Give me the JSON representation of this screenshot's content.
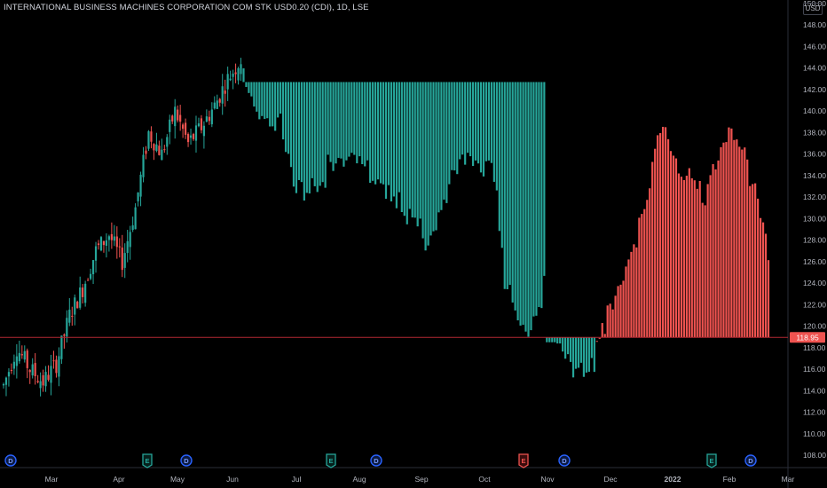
{
  "header": {
    "title": "INTERNATIONAL BUSINESS MACHINES CORPORATION COM STK USD0.20 (CDI), 1D, LSE",
    "currency": "USD"
  },
  "colors": {
    "up": "#26a69a",
    "down": "#ef5350",
    "axis_text": "#b2b5be",
    "axis_line": "#2a2e39",
    "background": "#000000",
    "last_price_line": "#b22833",
    "dividend_badge": "#2962ff",
    "earnings_good": "#26a69a",
    "earnings_bad": "#ef5350"
  },
  "chart_data": {
    "type": "candlestick",
    "y_axis": {
      "ticks": [
        "108.00",
        "110.00",
        "112.00",
        "114.00",
        "116.00",
        "118.00",
        "120.00",
        "122.00",
        "124.00",
        "126.00",
        "128.00",
        "130.00",
        "132.00",
        "134.00",
        "136.00",
        "138.00",
        "140.00",
        "142.00",
        "144.00",
        "146.00",
        "148.00",
        "150.00"
      ],
      "range": [
        107,
        150.5
      ]
    },
    "x_axis": {
      "labels": [
        "Mar",
        "Apr",
        "May",
        "Jun",
        "Jul",
        "Aug",
        "Sep",
        "Oct",
        "Nov",
        "Dec",
        "2022",
        "Feb",
        "Mar"
      ]
    },
    "last_price": {
      "value": 118.95,
      "label": "118.95"
    },
    "events": [
      {
        "type": "dividend",
        "label": "D",
        "month": "Feb"
      },
      {
        "type": "earnings",
        "label": "E",
        "month": "Apr"
      },
      {
        "type": "dividend",
        "label": "D",
        "month": "May"
      },
      {
        "type": "earnings",
        "label": "E",
        "month": "Jul"
      },
      {
        "type": "dividend",
        "label": "D",
        "month": "Aug"
      },
      {
        "type": "earnings",
        "label": "E",
        "month": "Oct"
      },
      {
        "type": "dividend",
        "label": "D",
        "month": "Nov"
      },
      {
        "type": "earnings",
        "label": "E",
        "month": "Jan"
      },
      {
        "type": "dividend",
        "label": "D",
        "month": "Feb"
      }
    ],
    "price_path": [
      {
        "d": 0,
        "p": 114.5
      },
      {
        "d": 5,
        "p": 118.0
      },
      {
        "d": 10,
        "p": 116.0
      },
      {
        "d": 15,
        "p": 114.8
      },
      {
        "d": 20,
        "p": 116.5
      },
      {
        "d": 25,
        "p": 121.0
      },
      {
        "d": 30,
        "p": 123.5
      },
      {
        "d": 35,
        "p": 127.0
      },
      {
        "d": 40,
        "p": 128.5
      },
      {
        "d": 45,
        "p": 126.0
      },
      {
        "d": 50,
        "p": 131.0
      },
      {
        "d": 55,
        "p": 138.0
      },
      {
        "d": 60,
        "p": 136.0
      },
      {
        "d": 65,
        "p": 140.0
      },
      {
        "d": 70,
        "p": 137.0
      },
      {
        "d": 75,
        "p": 138.5
      },
      {
        "d": 80,
        "p": 140.5
      },
      {
        "d": 85,
        "p": 143.0
      },
      {
        "d": 90,
        "p": 144.8
      },
      {
        "d": 95,
        "p": 141.0
      },
      {
        "d": 100,
        "p": 139.5
      },
      {
        "d": 105,
        "p": 139.5
      },
      {
        "d": 110,
        "p": 134.0
      },
      {
        "d": 115,
        "p": 133.5
      },
      {
        "d": 120,
        "p": 134.2
      },
      {
        "d": 125,
        "p": 136.5
      },
      {
        "d": 130,
        "p": 136.0
      },
      {
        "d": 135,
        "p": 137.0
      },
      {
        "d": 140,
        "p": 134.0
      },
      {
        "d": 145,
        "p": 133.5
      },
      {
        "d": 150,
        "p": 132.5
      },
      {
        "d": 155,
        "p": 131.0
      },
      {
        "d": 160,
        "p": 128.5
      },
      {
        "d": 165,
        "p": 131.0
      },
      {
        "d": 170,
        "p": 135.0
      },
      {
        "d": 175,
        "p": 137.0
      },
      {
        "d": 180,
        "p": 135.5
      },
      {
        "d": 185,
        "p": 136.5
      },
      {
        "d": 190,
        "p": 125.0
      },
      {
        "d": 195,
        "p": 120.5
      },
      {
        "d": 200,
        "p": 121.0
      },
      {
        "d": 205,
        "p": 125.5
      },
      {
        "d": 210,
        "p": 119.5
      },
      {
        "d": 215,
        "p": 117.5
      },
      {
        "d": 220,
        "p": 116.0
      },
      {
        "d": 225,
        "p": 118.0
      },
      {
        "d": 230,
        "p": 121.0
      },
      {
        "d": 235,
        "p": 124.0
      },
      {
        "d": 240,
        "p": 128.0
      },
      {
        "d": 245,
        "p": 133.0
      },
      {
        "d": 250,
        "p": 138.0
      },
      {
        "d": 255,
        "p": 134.0
      },
      {
        "d": 260,
        "p": 133.0
      },
      {
        "d": 265,
        "p": 131.0
      },
      {
        "d": 270,
        "p": 134.0
      },
      {
        "d": 275,
        "p": 137.5
      },
      {
        "d": 280,
        "p": 136.0
      },
      {
        "d": 285,
        "p": 131.0
      },
      {
        "d": 290,
        "p": 125.0
      }
    ],
    "region_days": {
      "plain_end": 90,
      "teal_end": 205,
      "down_start": 225,
      "end": 290
    }
  }
}
